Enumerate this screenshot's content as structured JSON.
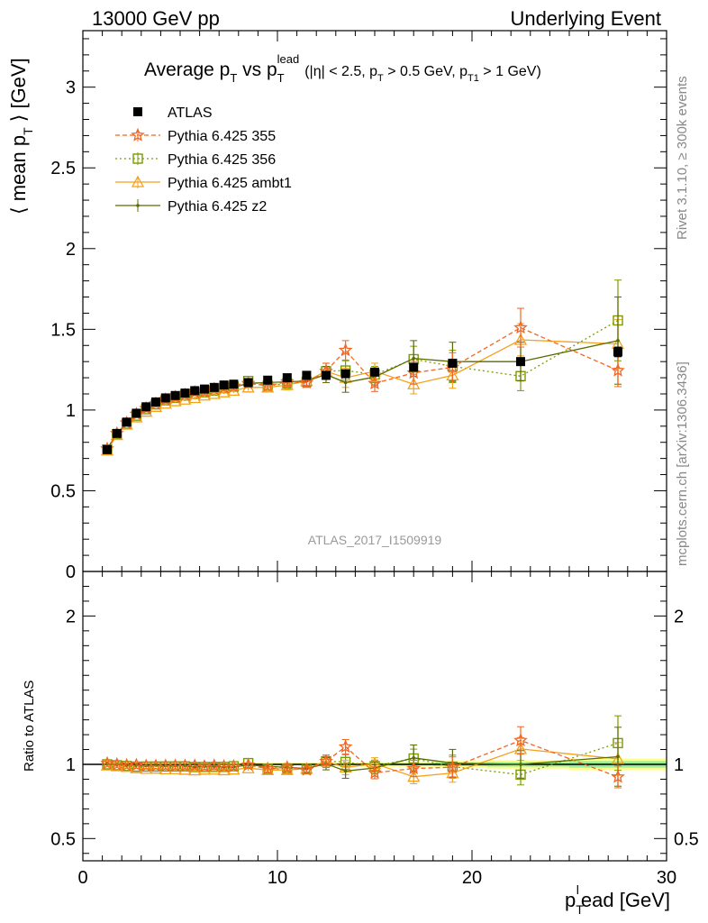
{
  "header": {
    "left": "13000 GeV pp",
    "right": "Underlying Event"
  },
  "side": {
    "rivet": "Rivet 3.1.10, ≥ 300k events",
    "mcplots": "mcplots.cern.ch [arXiv:1306.3436]"
  },
  "plot_title": {
    "main": "Average p",
    "main_sub": "T",
    "vs": " vs p",
    "vs_sub": "T",
    "vs_sup": "lead",
    "cuts": "(|η| < 2.5, p",
    "cuts_sub1": "T",
    "cuts_mid": " > 0.5 GeV, p",
    "cuts_sub2": "T1",
    "cuts_end": " > 1 GeV)"
  },
  "watermark": "ATLAS_2017_I1509919",
  "ylabel_main": {
    "pre": "⟨ mean p",
    "sub": "T",
    "post": " ⟩ [GeV]"
  },
  "ylabel_ratio": "Ratio to ATLAS",
  "xlabel": {
    "pre": "p",
    "sub": "T",
    "sup": "l",
    "post": "ead [GeV]"
  },
  "colors": {
    "atlas": "#000000",
    "p355": "#f26522",
    "p356": "#7a9a01",
    "ambt1": "#f4a11c",
    "z2": "#5a6b00",
    "band_outer": "#ffff88",
    "band_inner": "#99ee99"
  },
  "chart_data": {
    "type": "scatter",
    "x_range": [
      0,
      30
    ],
    "main_y_range": [
      0,
      3.35
    ],
    "ratio_y_range": [
      0.35,
      2.3
    ],
    "x_ticks": [
      "0",
      "10",
      "20",
      "30"
    ],
    "main_y_ticks": [
      "0",
      "0.5",
      "1",
      "1.5",
      "2",
      "2.5",
      "3"
    ],
    "ratio_y_ticks": [
      "0.5",
      "1",
      "2"
    ],
    "legend_position": "top-left",
    "x": [
      1.25,
      1.75,
      2.25,
      2.75,
      3.25,
      3.75,
      4.25,
      4.75,
      5.25,
      5.75,
      6.25,
      6.75,
      7.25,
      7.75,
      8.5,
      9.5,
      10.5,
      11.5,
      12.5,
      13.5,
      15.0,
      17.0,
      19.0,
      22.5,
      27.5
    ],
    "series": [
      {
        "name": "ATLAS",
        "key": "atlas",
        "values": [
          0.755,
          0.855,
          0.925,
          0.98,
          1.02,
          1.05,
          1.075,
          1.09,
          1.105,
          1.12,
          1.13,
          1.14,
          1.155,
          1.16,
          1.17,
          1.185,
          1.2,
          1.215,
          1.215,
          1.225,
          1.235,
          1.265,
          1.29,
          1.3,
          1.36
        ],
        "errors": [
          0.005,
          0.005,
          0.005,
          0.005,
          0.005,
          0.005,
          0.005,
          0.005,
          0.005,
          0.005,
          0.005,
          0.005,
          0.005,
          0.005,
          0.005,
          0.005,
          0.005,
          0.005,
          0.005,
          0.005,
          0.01,
          0.01,
          0.015,
          0.02,
          0.03
        ]
      },
      {
        "name": "Pythia 6.425 355",
        "key": "p355",
        "values": [
          0.76,
          0.855,
          0.92,
          0.975,
          1.01,
          1.04,
          1.065,
          1.08,
          1.095,
          1.11,
          1.115,
          1.13,
          1.14,
          1.145,
          1.165,
          1.15,
          1.175,
          1.17,
          1.24,
          1.37,
          1.165,
          1.23,
          1.265,
          1.51,
          1.245
        ],
        "errors": [
          0.005,
          0.005,
          0.005,
          0.005,
          0.005,
          0.005,
          0.01,
          0.01,
          0.01,
          0.01,
          0.01,
          0.01,
          0.01,
          0.015,
          0.02,
          0.02,
          0.03,
          0.03,
          0.05,
          0.06,
          0.05,
          0.07,
          0.09,
          0.12,
          0.1
        ]
      },
      {
        "name": "Pythia 6.425 356",
        "key": "p356",
        "values": [
          0.755,
          0.85,
          0.915,
          0.965,
          1.005,
          1.035,
          1.06,
          1.075,
          1.09,
          1.1,
          1.11,
          1.12,
          1.135,
          1.145,
          1.18,
          1.15,
          1.165,
          1.175,
          1.24,
          1.245,
          1.22,
          1.315,
          1.27,
          1.21,
          1.555
        ],
        "errors": [
          0.005,
          0.005,
          0.005,
          0.005,
          0.005,
          0.005,
          0.01,
          0.01,
          0.01,
          0.01,
          0.01,
          0.01,
          0.01,
          0.015,
          0.02,
          0.02,
          0.03,
          0.03,
          0.05,
          0.06,
          0.05,
          0.08,
          0.1,
          0.09,
          0.25
        ]
      },
      {
        "name": "Pythia 6.425 ambt1",
        "key": "ambt1",
        "values": [
          0.75,
          0.845,
          0.91,
          0.955,
          0.99,
          1.02,
          1.04,
          1.055,
          1.065,
          1.075,
          1.09,
          1.1,
          1.11,
          1.12,
          1.14,
          1.14,
          1.155,
          1.18,
          1.24,
          1.2,
          1.24,
          1.16,
          1.215,
          1.435,
          1.41
        ],
        "errors": [
          0.005,
          0.005,
          0.005,
          0.005,
          0.005,
          0.005,
          0.01,
          0.01,
          0.01,
          0.01,
          0.01,
          0.01,
          0.01,
          0.015,
          0.02,
          0.02,
          0.03,
          0.03,
          0.05,
          0.06,
          0.05,
          0.06,
          0.08,
          0.1,
          0.15
        ]
      },
      {
        "name": "Pythia 6.425 z2",
        "key": "z2",
        "values": [
          0.76,
          0.855,
          0.92,
          0.975,
          1.01,
          1.045,
          1.065,
          1.08,
          1.095,
          1.1,
          1.115,
          1.125,
          1.135,
          1.14,
          1.165,
          1.17,
          1.175,
          1.18,
          1.22,
          1.17,
          1.205,
          1.32,
          1.3,
          1.3,
          1.43
        ],
        "errors": [
          0.005,
          0.005,
          0.005,
          0.005,
          0.005,
          0.005,
          0.01,
          0.01,
          0.01,
          0.01,
          0.01,
          0.01,
          0.01,
          0.015,
          0.02,
          0.02,
          0.03,
          0.03,
          0.05,
          0.06,
          0.05,
          0.11,
          0.12,
          0.12,
          0.27
        ]
      }
    ]
  }
}
